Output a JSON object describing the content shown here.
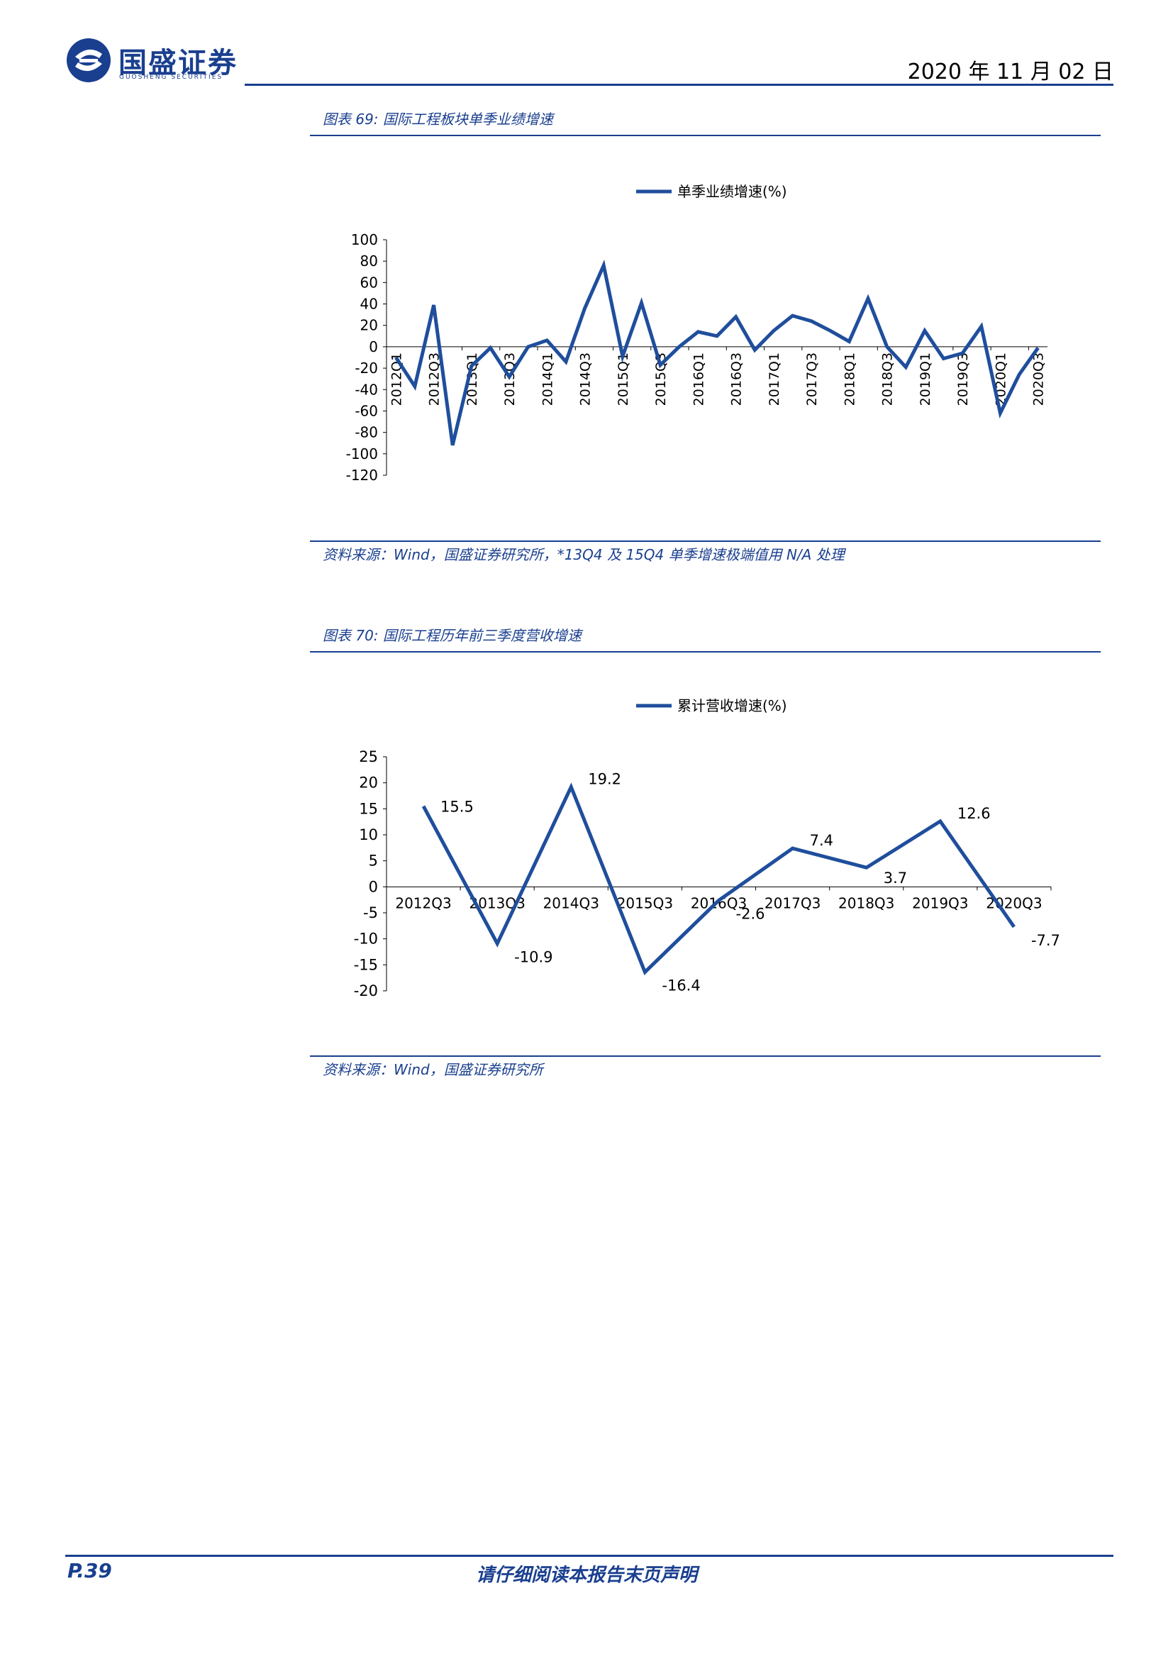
{
  "header": {
    "logo_name": "国盛证券",
    "logo_sub": "GUOSHENG SECURITIES",
    "date": "2020 年 11 月 02 日"
  },
  "figure69": {
    "title": "图表 69:  国际工程板块单季业绩增速",
    "source": "资料来源：Wind，国盛证券研究所，*13Q4 及 15Q4 单季增速极端值用 N/A 处理"
  },
  "figure70": {
    "title": "图表 70:  国际工程历年前三季度营收增速",
    "source": "资料来源：Wind，国盛证券研究所"
  },
  "footer": {
    "page": "P.39",
    "disclaimer": "请仔细阅读本报告末页声明"
  },
  "colors": {
    "brand": "#1a3f8f",
    "line": "#1f4e9c"
  },
  "chart_data": [
    {
      "type": "line",
      "legend": "单季业绩增速(%)",
      "ylim": [
        -120,
        100
      ],
      "yticks": [
        100,
        80,
        60,
        40,
        20,
        0,
        -20,
        -40,
        -60,
        -80,
        -100,
        -120
      ],
      "categories": [
        "2012Q1",
        "2012Q2",
        "2012Q3",
        "2012Q4",
        "2013Q1",
        "2013Q2",
        "2013Q3",
        "2013Q4",
        "2014Q1",
        "2014Q2",
        "2014Q3",
        "2014Q4",
        "2015Q1",
        "2015Q2",
        "2015Q3",
        "2015Q4",
        "2016Q1",
        "2016Q2",
        "2016Q3",
        "2016Q4",
        "2017Q1",
        "2017Q2",
        "2017Q3",
        "2017Q4",
        "2018Q1",
        "2018Q2",
        "2018Q3",
        "2018Q4",
        "2019Q1",
        "2019Q2",
        "2019Q3",
        "2019Q4",
        "2020Q1",
        "2020Q2",
        "2020Q3"
      ],
      "tick_labels": [
        "2012Q1",
        "2012Q3",
        "2013Q1",
        "2013Q3",
        "2014Q1",
        "2014Q3",
        "2015Q1",
        "2015Q3",
        "2016Q1",
        "2016Q3",
        "2017Q1",
        "2017Q3",
        "2018Q1",
        "2018Q3",
        "2019Q1",
        "2019Q3",
        "2020Q1",
        "2020Q3"
      ],
      "series": [
        {
          "name": "单季业绩增速(%)",
          "values": [
            -10,
            -37,
            39,
            -92,
            -18,
            -1,
            -28,
            0,
            6,
            -14,
            36,
            76,
            -9,
            41,
            -17,
            0,
            14,
            10,
            28,
            -3,
            15,
            29,
            24,
            15,
            5,
            45,
            0,
            -19,
            15,
            -11,
            -6,
            19,
            -62,
            -26,
            -1
          ]
        }
      ]
    },
    {
      "type": "line",
      "legend": "累计营收增速(%)",
      "ylim": [
        -20,
        25
      ],
      "yticks": [
        25,
        20,
        15,
        10,
        5,
        0,
        -5,
        -10,
        -15,
        -20
      ],
      "categories": [
        "2012Q3",
        "2013Q3",
        "2014Q3",
        "2015Q3",
        "2016Q3",
        "2017Q3",
        "2018Q3",
        "2019Q3",
        "2020Q3"
      ],
      "series": [
        {
          "name": "累计营收增速(%)",
          "values": [
            15.5,
            -10.9,
            19.2,
            -16.4,
            -2.6,
            7.4,
            3.7,
            12.6,
            -7.7
          ],
          "labels": [
            "15.5",
            "-10.9",
            "19.2",
            "-16.4",
            "-2.6",
            "7.4",
            "3.7",
            "12.6",
            "-7.7"
          ]
        }
      ]
    }
  ]
}
